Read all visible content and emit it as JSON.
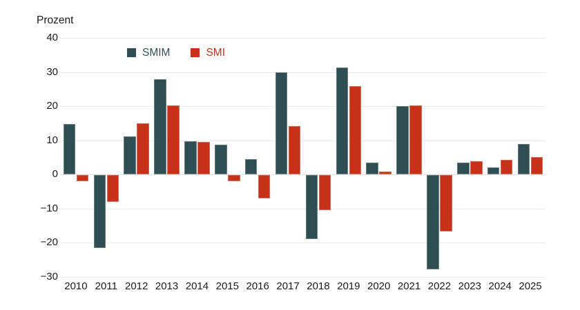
{
  "chart_data": {
    "type": "bar",
    "title": "",
    "ylabel": "Prozent",
    "xlabel": "",
    "categories": [
      "2010",
      "2011",
      "2012",
      "2013",
      "2014",
      "2015",
      "2016",
      "2017",
      "2018",
      "2019",
      "2020",
      "2021",
      "2022",
      "2023",
      "2024",
      "2025"
    ],
    "series": [
      {
        "name": "SMIM",
        "color": "#2F4E53",
        "values": [
          14.7,
          -21.4,
          11.2,
          27.8,
          9.8,
          8.8,
          4.5,
          29.9,
          -18.7,
          31.4,
          3.4,
          20.1,
          -27.6,
          3.5,
          2.1,
          9.0
        ]
      },
      {
        "name": "SMI",
        "color": "#C63118",
        "values": [
          -1.7,
          -7.8,
          14.9,
          20.2,
          9.5,
          -1.8,
          -6.8,
          14.1,
          -10.2,
          25.9,
          0.8,
          20.3,
          -16.5,
          3.8,
          4.2,
          5.1
        ]
      }
    ],
    "ylim": [
      -30,
      40
    ],
    "y_ticks": [
      40,
      30,
      20,
      10,
      0,
      -10,
      -20,
      -30
    ],
    "y_tick_labels": [
      "40",
      "30",
      "20",
      "10",
      "0",
      "−10",
      "−20",
      "−30"
    ],
    "grid": "horizontal",
    "legend_position": "top-inside-left",
    "colors": {
      "gridline": "#e9e9e9",
      "zero_line": "#dedede",
      "text": "#1a1a1a",
      "background": "#ffffff"
    }
  }
}
